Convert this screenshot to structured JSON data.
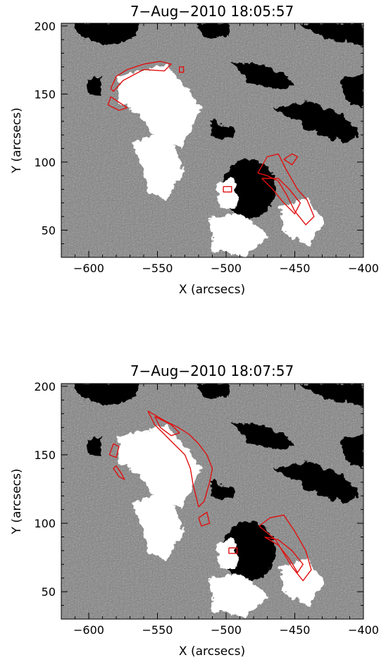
{
  "panels": [
    {
      "title": "7−Aug−2010  18:05:57",
      "xlabel": "X (arcsecs)",
      "ylabel": "Y (arcsecs)",
      "xticks": [
        "−600",
        "−550",
        "−500",
        "−450",
        "−400"
      ],
      "yticks": [
        "50",
        "100",
        "150",
        "200"
      ]
    },
    {
      "title": "7−Aug−2010  18:07:57",
      "xlabel": "X (arcsecs)",
      "ylabel": "Y (arcsecs)",
      "xticks": [
        "−600",
        "−550",
        "−500",
        "−450",
        "−400"
      ],
      "yticks": [
        "50",
        "100",
        "150",
        "200"
      ]
    }
  ],
  "chart_data": [
    {
      "type": "heatmap",
      "title": "7−Aug−2010  18:05:57",
      "xlabel": "X (arcsecs)",
      "ylabel": "Y (arcsecs)",
      "xlim": [
        -620,
        -400
      ],
      "ylim": [
        30,
        202
      ],
      "xticks": [
        -600,
        -550,
        -500,
        -450,
        -400
      ],
      "yticks": [
        50,
        100,
        150,
        200
      ],
      "colormap": "grayscale magnetogram",
      "contour_color": "#e01010",
      "contours": [
        [
          [
            -584,
            154
          ],
          [
            -580,
            163
          ],
          [
            -572,
            168
          ],
          [
            -560,
            172
          ],
          [
            -548,
            174
          ],
          [
            -540,
            172
          ],
          [
            -545,
            167
          ],
          [
            -560,
            168
          ],
          [
            -575,
            160
          ],
          [
            -582,
            152
          ],
          [
            -584,
            154
          ]
        ],
        [
          [
            -584,
            148
          ],
          [
            -578,
            144
          ],
          [
            -572,
            140
          ],
          [
            -578,
            138
          ],
          [
            -586,
            142
          ],
          [
            -584,
            148
          ]
        ],
        [
          [
            -534,
            170
          ],
          [
            -531,
            170
          ],
          [
            -531,
            166
          ],
          [
            -534,
            166
          ],
          [
            -534,
            170
          ]
        ],
        [
          [
            -477,
            92
          ],
          [
            -470,
            104
          ],
          [
            -462,
            106
          ],
          [
            -456,
            94
          ],
          [
            -448,
            80
          ],
          [
            -441,
            72
          ],
          [
            -436,
            60
          ],
          [
            -442,
            54
          ],
          [
            -450,
            64
          ],
          [
            -456,
            76
          ],
          [
            -462,
            86
          ],
          [
            -470,
            90
          ],
          [
            -477,
            92
          ]
        ],
        [
          [
            -474,
            88
          ],
          [
            -466,
            80
          ],
          [
            -458,
            70
          ],
          [
            -450,
            62
          ],
          [
            -446,
            70
          ],
          [
            -454,
            80
          ],
          [
            -462,
            88
          ],
          [
            -474,
            88
          ]
        ],
        [
          [
            -502,
            82
          ],
          [
            -496,
            82
          ],
          [
            -496,
            78
          ],
          [
            -502,
            78
          ],
          [
            -502,
            82
          ]
        ],
        [
          [
            -458,
            102
          ],
          [
            -452,
            106
          ],
          [
            -448,
            104
          ],
          [
            -452,
            98
          ],
          [
            -458,
            102
          ]
        ]
      ]
    },
    {
      "type": "heatmap",
      "title": "7−Aug−2010  18:07:57",
      "xlabel": "X (arcsecs)",
      "ylabel": "Y (arcsecs)",
      "xlim": [
        -620,
        -400
      ],
      "ylim": [
        30,
        202
      ],
      "xticks": [
        -600,
        -550,
        -500,
        -450,
        -400
      ],
      "yticks": [
        50,
        100,
        150,
        200
      ],
      "colormap": "grayscale magnetogram",
      "contour_color": "#e01010",
      "contours": [
        [
          [
            -557,
            182
          ],
          [
            -545,
            175
          ],
          [
            -535,
            170
          ],
          [
            -527,
            165
          ],
          [
            -520,
            158
          ],
          [
            -514,
            150
          ],
          [
            -510,
            140
          ],
          [
            -512,
            130
          ],
          [
            -516,
            116
          ],
          [
            -520,
            112
          ],
          [
            -524,
            128
          ],
          [
            -526,
            140
          ],
          [
            -530,
            150
          ],
          [
            -540,
            160
          ],
          [
            -552,
            172
          ],
          [
            -557,
            182
          ]
        ],
        [
          [
            -552,
            178
          ],
          [
            -540,
            172
          ],
          [
            -534,
            166
          ],
          [
            -540,
            164
          ],
          [
            -548,
            170
          ],
          [
            -552,
            178
          ]
        ],
        [
          [
            -585,
            150
          ],
          [
            -582,
            158
          ],
          [
            -578,
            156
          ],
          [
            -580,
            148
          ],
          [
            -585,
            150
          ]
        ],
        [
          [
            -580,
            142
          ],
          [
            -576,
            136
          ],
          [
            -574,
            132
          ],
          [
            -578,
            134
          ],
          [
            -582,
            140
          ],
          [
            -580,
            142
          ]
        ],
        [
          [
            -476,
            98
          ],
          [
            -468,
            104
          ],
          [
            -458,
            106
          ],
          [
            -450,
            94
          ],
          [
            -442,
            80
          ],
          [
            -438,
            66
          ],
          [
            -444,
            58
          ],
          [
            -452,
            68
          ],
          [
            -458,
            78
          ],
          [
            -464,
            88
          ],
          [
            -476,
            98
          ]
        ],
        [
          [
            -472,
            90
          ],
          [
            -462,
            84
          ],
          [
            -454,
            74
          ],
          [
            -448,
            64
          ],
          [
            -444,
            70
          ],
          [
            -452,
            80
          ],
          [
            -462,
            88
          ],
          [
            -472,
            90
          ]
        ],
        [
          [
            -498,
            82
          ],
          [
            -492,
            82
          ],
          [
            -492,
            78
          ],
          [
            -498,
            78
          ],
          [
            -498,
            82
          ]
        ],
        [
          [
            -520,
            104
          ],
          [
            -514,
            108
          ],
          [
            -512,
            100
          ],
          [
            -518,
            98
          ],
          [
            -520,
            104
          ]
        ]
      ]
    }
  ]
}
